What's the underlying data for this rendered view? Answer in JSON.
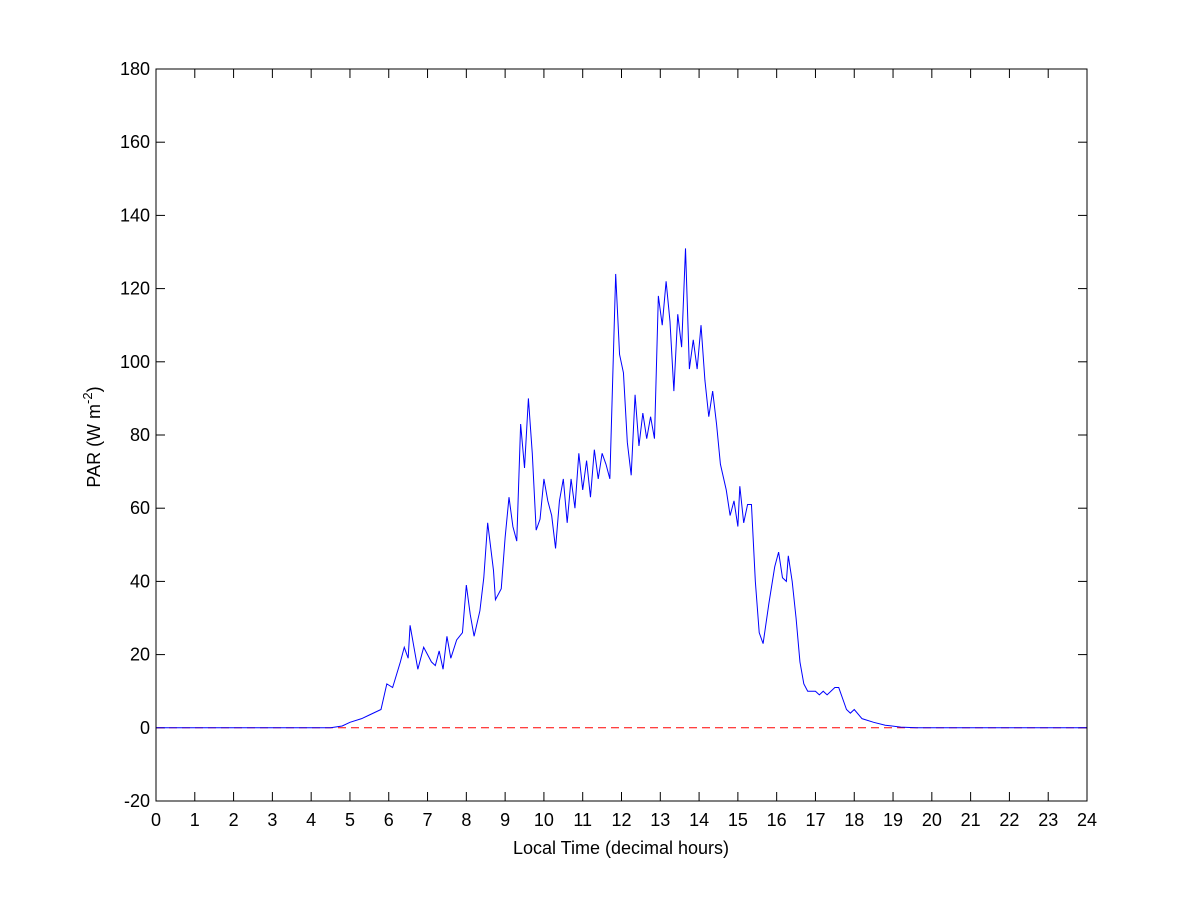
{
  "chart_data": {
    "type": "line",
    "xlabel": "Local Time (decimal hours)",
    "ylabel": [
      "PAR (W m",
      "-2",
      ")"
    ],
    "xlim": [
      0,
      24
    ],
    "xticks": [
      0,
      1,
      2,
      3,
      4,
      5,
      6,
      7,
      8,
      9,
      10,
      11,
      12,
      13,
      14,
      15,
      16,
      17,
      18,
      19,
      20,
      21,
      22,
      23,
      24
    ],
    "ylim": [
      -20,
      180
    ],
    "yticks": [
      -20,
      0,
      20,
      40,
      60,
      80,
      100,
      120,
      140,
      160,
      180
    ],
    "grid": false,
    "reference_line": {
      "value": 0,
      "color": "#ff0000",
      "style": "dashed"
    },
    "series": [
      {
        "color": "#0000ff",
        "x": [
          0,
          4.5,
          4.8,
          5.0,
          5.3,
          5.5,
          5.8,
          5.95,
          6.1,
          6.3,
          6.4,
          6.5,
          6.55,
          6.65,
          6.75,
          6.9,
          7.1,
          7.2,
          7.3,
          7.4,
          7.5,
          7.6,
          7.75,
          7.9,
          8.0,
          8.1,
          8.2,
          8.35,
          8.45,
          8.55,
          8.7,
          8.75,
          8.9,
          9.0,
          9.1,
          9.2,
          9.3,
          9.4,
          9.5,
          9.6,
          9.7,
          9.8,
          9.9,
          10.0,
          10.1,
          10.2,
          10.3,
          10.4,
          10.5,
          10.6,
          10.7,
          10.8,
          10.9,
          11.0,
          11.1,
          11.2,
          11.3,
          11.4,
          11.5,
          11.6,
          11.7,
          11.85,
          11.95,
          12.05,
          12.15,
          12.25,
          12.35,
          12.45,
          12.55,
          12.65,
          12.75,
          12.85,
          12.95,
          13.05,
          13.15,
          13.25,
          13.35,
          13.45,
          13.55,
          13.65,
          13.75,
          13.85,
          13.95,
          14.05,
          14.15,
          14.25,
          14.35,
          14.45,
          14.55,
          14.7,
          14.8,
          14.9,
          15.0,
          15.05,
          15.15,
          15.25,
          15.35,
          15.45,
          15.55,
          15.65,
          15.8,
          15.95,
          16.05,
          16.15,
          16.25,
          16.3,
          16.4,
          16.5,
          16.6,
          16.7,
          16.8,
          17.0,
          17.1,
          17.2,
          17.3,
          17.5,
          17.6,
          17.7,
          17.8,
          17.9,
          18.0,
          18.2,
          18.5,
          18.8,
          19.2,
          19.6,
          24
        ],
        "values": [
          0,
          0,
          0.5,
          1.5,
          2.5,
          3.5,
          5,
          12,
          11,
          18,
          22,
          19,
          28,
          22,
          16,
          22,
          18,
          17,
          21,
          16,
          25,
          19,
          24,
          26,
          39,
          31,
          25,
          32,
          41,
          56,
          43,
          35,
          38,
          52,
          63,
          55,
          51,
          83,
          71,
          90,
          75,
          54,
          57,
          68,
          62,
          58,
          49,
          62,
          68,
          56,
          68,
          60,
          75,
          65,
          73,
          63,
          76,
          68,
          75,
          72,
          68,
          124,
          102,
          97,
          78,
          69,
          91,
          77,
          86,
          79,
          85,
          79,
          118,
          110,
          122,
          111,
          92,
          113,
          104,
          131,
          98,
          106,
          98,
          110,
          95,
          85,
          92,
          83,
          72,
          65,
          58,
          62,
          55,
          66,
          56,
          61,
          61,
          40,
          26,
          23,
          34,
          44,
          48,
          41,
          40,
          47,
          40,
          30,
          18,
          12,
          10,
          10,
          9,
          10,
          9,
          11,
          11,
          8,
          5,
          4,
          5,
          2.5,
          1.5,
          0.7,
          0.2,
          0,
          0
        ]
      }
    ]
  }
}
